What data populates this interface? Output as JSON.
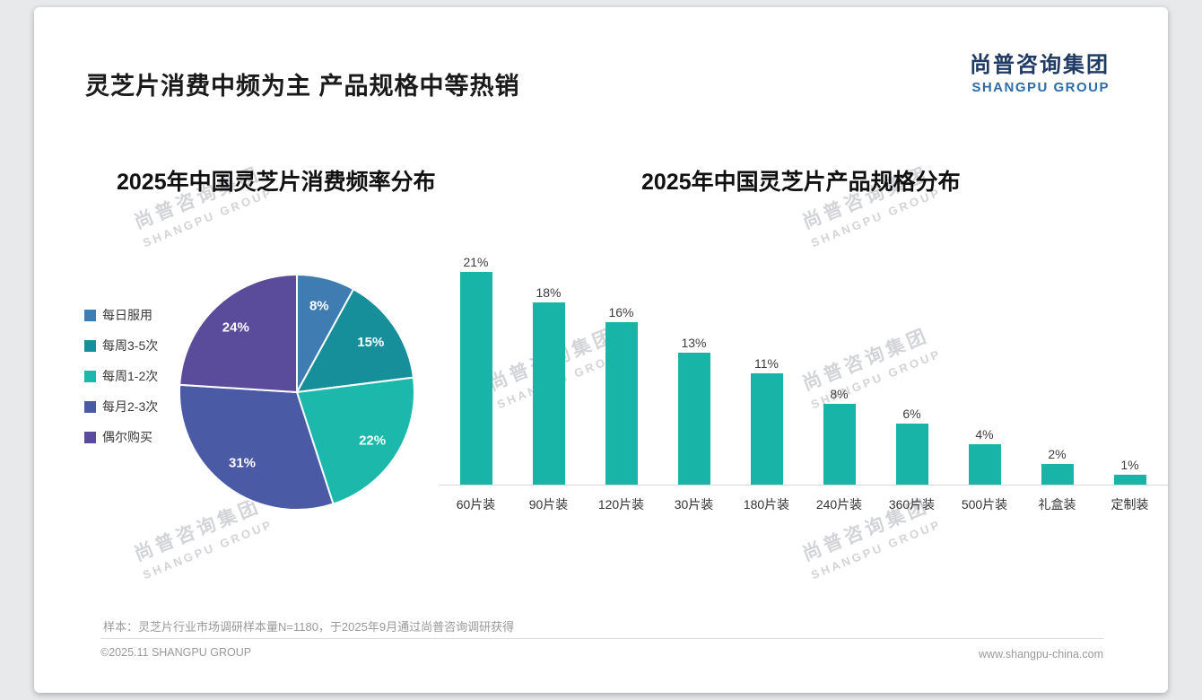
{
  "page": {
    "title": "灵芝片消费中频为主 产品规格中等热销",
    "logo": {
      "cn": "尚普咨询集团",
      "en": "SHANGPU GROUP"
    },
    "watermark": {
      "cn": "尚普咨询集团",
      "en": "SHANGPU GROUP"
    },
    "footnote": "样本：灵芝片行业市场调研样本量N=1180，于2025年9月通过尚普咨询调研获得",
    "copyright": "©2025.11 SHANGPU GROUP",
    "website": "www.shangpu-china.com",
    "colors": {
      "brand_navy": "#1f3a63",
      "brand_blue": "#2d6ca8",
      "accent_teal": "#18b4a8"
    }
  },
  "chart_data": [
    {
      "type": "pie",
      "title": "2025年中国灵芝片消费频率分布",
      "labels": [
        "每日服用",
        "每周3-5次",
        "每周1-2次",
        "每月2-3次",
        "偶尔购买"
      ],
      "values": [
        8,
        15,
        22,
        31,
        24
      ],
      "unit": "%",
      "colors": [
        "#3e7cb1",
        "#178f9b",
        "#1cb8ab",
        "#4a5aa5",
        "#5b4b9b"
      ],
      "legend_position": "left",
      "start_angle_deg": -90,
      "direction": "clockwise",
      "slice_border_color": "#ffffff"
    },
    {
      "type": "bar",
      "title": "2025年中国灵芝片产品规格分布",
      "categories": [
        "60片装",
        "90片装",
        "120片装",
        "30片装",
        "180片装",
        "240片装",
        "360片装",
        "500片装",
        "礼盒装",
        "定制装"
      ],
      "values": [
        21,
        18,
        16,
        13,
        11,
        8,
        6,
        4,
        2,
        1
      ],
      "unit": "%",
      "bar_color": "#18b4a8",
      "ylim": [
        0,
        21
      ],
      "grid": false,
      "value_labels": true,
      "legend_position": "none"
    }
  ]
}
